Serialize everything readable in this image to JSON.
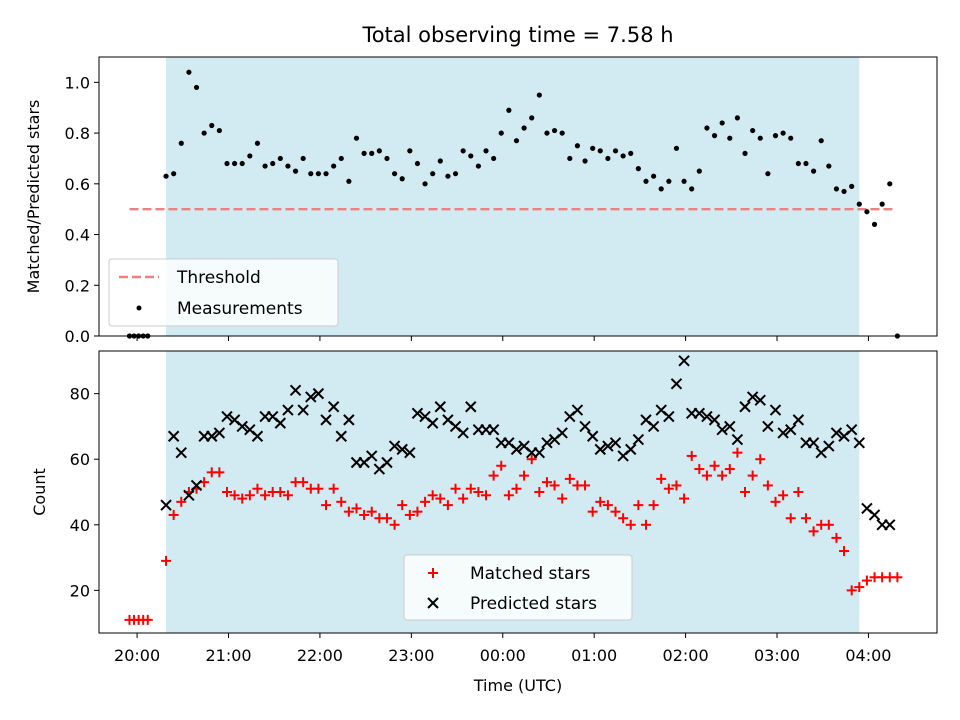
{
  "chart_data": [
    {
      "type": "scatter",
      "title": "Total observing time = 7.58 h",
      "xlabel": "",
      "ylabel": "Matched/Predicted stars",
      "xlim": [
        "19:35",
        "04:45"
      ],
      "ylim": [
        0.0,
        1.1
      ],
      "yticks": [
        0.0,
        0.2,
        0.4,
        0.6,
        0.8,
        1.0
      ],
      "ytick_labels": [
        "0.0",
        "0.2",
        "0.4",
        "0.6",
        "0.8",
        "1.0"
      ],
      "shaded_interval": [
        "20:19",
        "03:54"
      ],
      "shade_color": "#add8e6",
      "threshold": {
        "name": "Threshold",
        "value": 0.5,
        "x_range": [
          "19:55",
          "04:18"
        ],
        "color": "#f08080"
      },
      "series": [
        {
          "name": "Measurements",
          "color": "#000000",
          "x": [
            "19:55",
            "19:58",
            "20:01",
            "20:04",
            "20:07",
            "20:19",
            "20:24",
            "20:29",
            "20:34",
            "20:39",
            "20:44",
            "20:49",
            "20:54",
            "20:59",
            "21:04",
            "21:09",
            "21:14",
            "21:19",
            "21:24",
            "21:29",
            "21:34",
            "21:39",
            "21:44",
            "21:49",
            "21:54",
            "21:59",
            "22:04",
            "22:09",
            "22:14",
            "22:19",
            "22:24",
            "22:29",
            "22:34",
            "22:39",
            "22:44",
            "22:49",
            "22:54",
            "22:59",
            "23:04",
            "23:09",
            "23:14",
            "23:19",
            "23:24",
            "23:29",
            "23:34",
            "23:39",
            "23:44",
            "23:49",
            "23:54",
            "23:59",
            "00:04",
            "00:09",
            "00:14",
            "00:19",
            "00:24",
            "00:29",
            "00:34",
            "00:39",
            "00:44",
            "00:49",
            "00:54",
            "00:59",
            "01:04",
            "01:09",
            "01:14",
            "01:19",
            "01:24",
            "01:29",
            "01:34",
            "01:39",
            "01:44",
            "01:49",
            "01:54",
            "01:59",
            "02:04",
            "02:09",
            "02:14",
            "02:19",
            "02:24",
            "02:29",
            "02:34",
            "02:39",
            "02:44",
            "02:49",
            "02:54",
            "02:59",
            "03:04",
            "03:09",
            "03:14",
            "03:19",
            "03:24",
            "03:29",
            "03:34",
            "03:39",
            "03:44",
            "03:49",
            "03:54",
            "03:59",
            "04:04",
            "04:09",
            "04:14",
            "04:19"
          ],
          "y": [
            0.0,
            0.0,
            0.0,
            0.0,
            0.0,
            0.63,
            0.64,
            0.76,
            1.04,
            0.98,
            0.8,
            0.83,
            0.81,
            0.68,
            0.68,
            0.68,
            0.71,
            0.76,
            0.67,
            0.68,
            0.7,
            0.67,
            0.65,
            0.7,
            0.64,
            0.64,
            0.64,
            0.67,
            0.7,
            0.61,
            0.78,
            0.72,
            0.72,
            0.73,
            0.7,
            0.64,
            0.62,
            0.73,
            0.68,
            0.6,
            0.64,
            0.69,
            0.63,
            0.64,
            0.73,
            0.71,
            0.67,
            0.73,
            0.7,
            0.8,
            0.89,
            0.77,
            0.82,
            0.86,
            0.95,
            0.8,
            0.81,
            0.8,
            0.7,
            0.75,
            0.69,
            0.74,
            0.73,
            0.7,
            0.73,
            0.71,
            0.72,
            0.66,
            0.61,
            0.63,
            0.58,
            0.61,
            0.74,
            0.61,
            0.58,
            0.65,
            0.82,
            0.79,
            0.84,
            0.78,
            0.86,
            0.72,
            0.81,
            0.78,
            0.64,
            0.79,
            0.8,
            0.78,
            0.68,
            0.68,
            0.65,
            0.77,
            0.67,
            0.58,
            0.57,
            0.59,
            0.52,
            0.49,
            0.44,
            0.52,
            0.6,
            0.0
          ]
        }
      ],
      "legend_location": "lower-left"
    },
    {
      "type": "scatter",
      "title": "",
      "xlabel": "Time (UTC)",
      "ylabel": "Count",
      "xlim": [
        "19:35",
        "04:45"
      ],
      "ylim": [
        7,
        93
      ],
      "xticks": [
        "20:00",
        "21:00",
        "22:00",
        "23:00",
        "00:00",
        "01:00",
        "02:00",
        "03:00",
        "04:00"
      ],
      "xtick_labels": [
        "20:00",
        "21:00",
        "22:00",
        "23:00",
        "00:00",
        "01:00",
        "02:00",
        "03:00",
        "04:00"
      ],
      "yticks": [
        20,
        40,
        60,
        80
      ],
      "ytick_labels": [
        "20",
        "40",
        "60",
        "80"
      ],
      "shaded_interval": [
        "20:19",
        "03:54"
      ],
      "shade_color": "#add8e6",
      "series": [
        {
          "name": "Matched stars",
          "marker": "plus",
          "color": "#ff0000",
          "x": [
            "19:55",
            "19:58",
            "20:01",
            "20:04",
            "20:07",
            "20:19",
            "20:24",
            "20:29",
            "20:34",
            "20:39",
            "20:44",
            "20:49",
            "20:54",
            "20:59",
            "21:04",
            "21:09",
            "21:14",
            "21:19",
            "21:24",
            "21:29",
            "21:34",
            "21:39",
            "21:44",
            "21:49",
            "21:54",
            "21:59",
            "22:04",
            "22:09",
            "22:14",
            "22:19",
            "22:24",
            "22:29",
            "22:34",
            "22:39",
            "22:44",
            "22:49",
            "22:54",
            "22:59",
            "23:04",
            "23:09",
            "23:14",
            "23:19",
            "23:24",
            "23:29",
            "23:34",
            "23:39",
            "23:44",
            "23:49",
            "23:54",
            "23:59",
            "00:04",
            "00:09",
            "00:14",
            "00:19",
            "00:24",
            "00:29",
            "00:34",
            "00:39",
            "00:44",
            "00:49",
            "00:54",
            "00:59",
            "01:04",
            "01:09",
            "01:14",
            "01:19",
            "01:24",
            "01:29",
            "01:34",
            "01:39",
            "01:44",
            "01:49",
            "01:54",
            "01:59",
            "02:04",
            "02:09",
            "02:14",
            "02:19",
            "02:24",
            "02:29",
            "02:34",
            "02:39",
            "02:44",
            "02:49",
            "02:54",
            "02:59",
            "03:04",
            "03:09",
            "03:14",
            "03:19",
            "03:24",
            "03:29",
            "03:34",
            "03:39",
            "03:44",
            "03:49",
            "03:54",
            "03:59",
            "04:04",
            "04:09",
            "04:14",
            "04:19"
          ],
          "y": [
            11,
            11,
            11,
            11,
            11,
            29,
            43,
            47,
            50,
            51,
            53,
            56,
            56,
            50,
            49,
            48,
            49,
            51,
            49,
            50,
            50,
            49,
            53,
            53,
            51,
            51,
            46,
            51,
            47,
            44,
            45,
            43,
            44,
            42,
            42,
            40,
            46,
            43,
            44,
            47,
            49,
            48,
            46,
            51,
            48,
            51,
            50,
            49,
            55,
            58,
            49,
            51,
            55,
            60,
            50,
            53,
            52,
            48,
            54,
            52,
            52,
            44,
            47,
            46,
            44,
            42,
            40,
            46,
            40,
            46,
            54,
            51,
            52,
            48,
            61,
            57,
            55,
            58,
            55,
            57,
            62,
            50,
            55,
            60,
            52,
            47,
            49,
            42,
            50,
            42,
            38,
            40,
            40,
            36,
            32,
            20,
            21,
            23,
            24,
            24,
            24,
            24
          ],
          "y_note_len": 102
        },
        {
          "name": "Predicted stars",
          "marker": "x",
          "color": "#000000",
          "x": [
            "20:19",
            "20:24",
            "20:29",
            "20:34",
            "20:39",
            "20:44",
            "20:49",
            "20:54",
            "20:59",
            "21:04",
            "21:09",
            "21:14",
            "21:19",
            "21:24",
            "21:29",
            "21:34",
            "21:39",
            "21:44",
            "21:49",
            "21:54",
            "21:59",
            "22:04",
            "22:09",
            "22:14",
            "22:19",
            "22:24",
            "22:29",
            "22:34",
            "22:39",
            "22:44",
            "22:49",
            "22:54",
            "22:59",
            "23:04",
            "23:09",
            "23:14",
            "23:19",
            "23:24",
            "23:29",
            "23:34",
            "23:39",
            "23:44",
            "23:49",
            "23:54",
            "23:59",
            "00:04",
            "00:09",
            "00:14",
            "00:19",
            "00:24",
            "00:29",
            "00:34",
            "00:39",
            "00:44",
            "00:49",
            "00:54",
            "00:59",
            "01:04",
            "01:09",
            "01:14",
            "01:19",
            "01:24",
            "01:29",
            "01:34",
            "01:39",
            "01:44",
            "01:49",
            "01:54",
            "01:59",
            "02:04",
            "02:09",
            "02:14",
            "02:19",
            "02:24",
            "02:29",
            "02:34",
            "02:39",
            "02:44",
            "02:49",
            "02:54",
            "02:59",
            "03:04",
            "03:09",
            "03:14",
            "03:19",
            "03:24",
            "03:29",
            "03:34",
            "03:39",
            "03:44",
            "03:49",
            "03:54",
            "03:59",
            "04:04",
            "04:09",
            "04:14"
          ],
          "y": [
            46,
            67,
            62,
            49,
            52,
            67,
            67,
            68,
            73,
            72,
            70,
            69,
            67,
            73,
            73,
            71,
            75,
            81,
            75,
            79,
            80,
            72,
            76,
            67,
            72,
            59,
            59,
            61,
            57,
            59,
            64,
            63,
            62,
            74,
            73,
            71,
            76,
            72,
            70,
            68,
            76,
            69,
            69,
            69,
            65,
            65,
            63,
            64,
            62,
            62,
            65,
            66,
            68,
            73,
            75,
            70,
            67,
            63,
            64,
            65,
            61,
            63,
            66,
            72,
            70,
            75,
            73,
            83,
            90,
            74,
            74,
            73,
            72,
            69,
            70,
            66,
            76,
            79,
            78,
            70,
            75,
            68,
            69,
            72,
            65,
            65,
            62,
            64,
            68,
            67,
            69,
            65,
            45,
            43,
            40,
            40
          ]
        }
      ],
      "legend_location": "lower-center"
    }
  ]
}
